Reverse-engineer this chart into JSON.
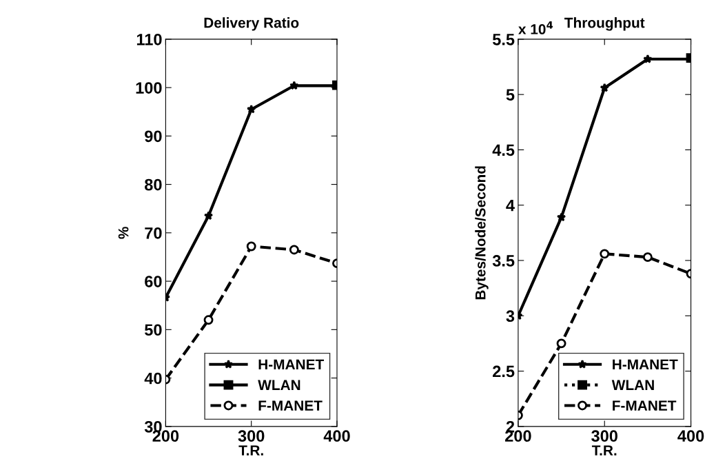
{
  "chart_data": [
    {
      "type": "line",
      "title": "Delivery Ratio",
      "xlabel": "T.R.",
      "ylabel": "%",
      "x": [
        200,
        250,
        300,
        350,
        400
      ],
      "xlim": [
        200,
        400
      ],
      "xticks": [
        200,
        300,
        400
      ],
      "ylim": [
        30,
        110
      ],
      "yticks": [
        30,
        40,
        50,
        60,
        70,
        80,
        90,
        100,
        110
      ],
      "grid": false,
      "legend": "bottom right",
      "series": [
        {
          "name": "H-MANET",
          "color": "#000000",
          "marker": "star",
          "line_style": "solid",
          "values": [
            56.6,
            73.5,
            95.5,
            100.4,
            100.4
          ]
        },
        {
          "name": "WLAN",
          "color": "#000000",
          "marker": "square",
          "line_style": "solid",
          "x": [
            400
          ],
          "values": [
            100.5
          ]
        },
        {
          "name": "F-MANET",
          "color": "#000000",
          "marker": "circle",
          "line_style": "dashed",
          "values": [
            39.7,
            52,
            67.2,
            66.5,
            63.7
          ]
        }
      ]
    },
    {
      "type": "line",
      "title": "Throughput",
      "xlabel": "T.R.",
      "ylabel": "Bytes/Node/Second",
      "annotations": [
        "x 10$^{4}$"
      ],
      "x": [
        200,
        250,
        300,
        350,
        400
      ],
      "xlim": [
        200,
        400
      ],
      "xticks": [
        200,
        300,
        400
      ],
      "ylim": [
        2,
        5.5
      ],
      "yticks": [
        2,
        2.5,
        3,
        3.5,
        4,
        4.5,
        5,
        5.5
      ],
      "grid": false,
      "legend": "bottom right",
      "series": [
        {
          "name": "H-MANET",
          "color": "#000000",
          "marker": "star",
          "line_style": "solid",
          "values": [
            3.0,
            3.89,
            5.06,
            5.32,
            5.32
          ]
        },
        {
          "name": "WLAN",
          "color": "#000000",
          "marker": "square",
          "line_style": "dotted",
          "x": [
            400
          ],
          "values": [
            5.33
          ]
        },
        {
          "name": "F-MANET",
          "color": "#000000",
          "marker": "circle",
          "line_style": "dashed",
          "values": [
            2.1,
            2.75,
            3.56,
            3.53,
            3.38
          ]
        }
      ]
    }
  ]
}
